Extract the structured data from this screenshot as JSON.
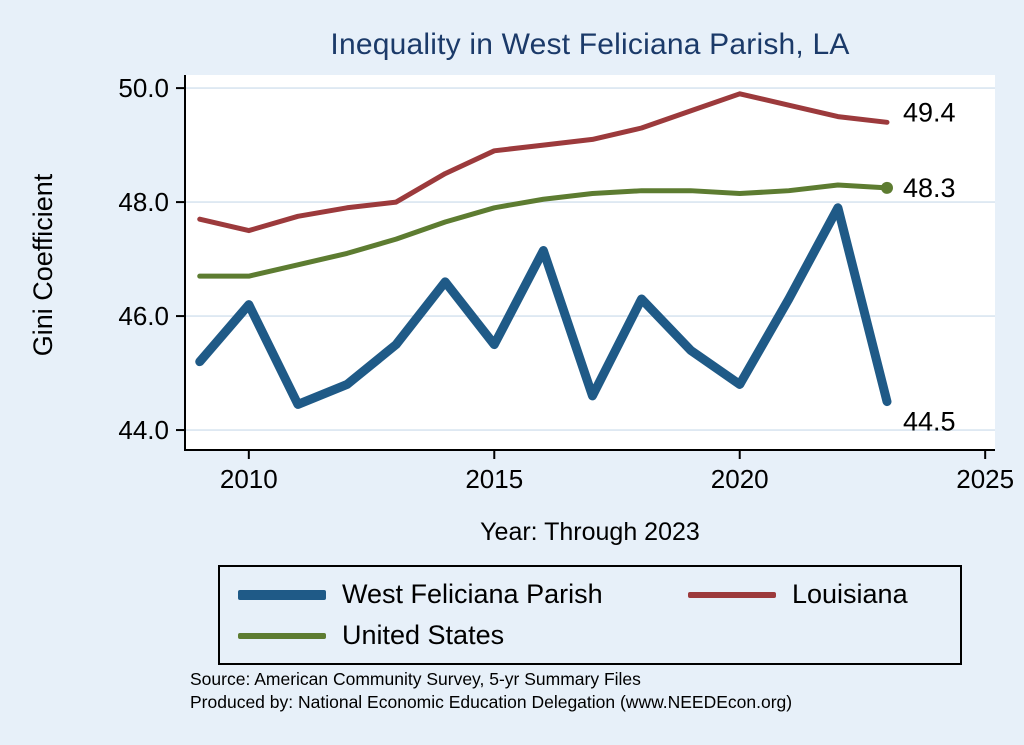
{
  "chart_data": {
    "type": "line",
    "title": "Inequality in West Feliciana Parish, LA",
    "xlabel": "Year: Through 2023",
    "ylabel": "Gini Coefficient",
    "x": [
      2009,
      2010,
      2011,
      2012,
      2013,
      2014,
      2015,
      2016,
      2017,
      2018,
      2019,
      2020,
      2021,
      2022,
      2023
    ],
    "series": [
      {
        "name": "West Feliciana Parish",
        "color": "#1f5a87",
        "width": 9,
        "end_label": "44.5",
        "label_dy": 20,
        "end_dot": false,
        "values": [
          45.2,
          46.2,
          44.45,
          44.8,
          45.5,
          46.6,
          45.5,
          47.15,
          44.6,
          46.3,
          45.4,
          44.8,
          46.3,
          47.9,
          44.5
        ]
      },
      {
        "name": "Louisiana",
        "color": "#9c3a3c",
        "width": 5,
        "end_label": "49.4",
        "label_dy": -10,
        "end_dot": false,
        "values": [
          47.7,
          47.5,
          47.75,
          47.9,
          48.0,
          48.5,
          48.9,
          49.0,
          49.1,
          49.3,
          49.6,
          49.9,
          49.7,
          49.5,
          49.4
        ]
      },
      {
        "name": "United States",
        "color": "#5d7c31",
        "width": 5,
        "end_label": "48.3",
        "label_dy": 0,
        "end_dot": true,
        "values": [
          46.7,
          46.7,
          46.9,
          47.1,
          47.35,
          47.65,
          47.9,
          48.05,
          48.15,
          48.2,
          48.2,
          48.15,
          48.2,
          48.3,
          48.25
        ]
      }
    ],
    "xlim": [
      2008.7,
      2025.2
    ],
    "ylim": [
      43.65,
      50.23
    ],
    "xticks": [
      2010,
      2015,
      2020,
      2025
    ],
    "yticks": [
      44.0,
      46.0,
      48.0,
      50.0
    ],
    "grid": true,
    "legend_position": "bottom"
  },
  "footer": {
    "source": "Source: American Community Survey, 5-yr Summary Files",
    "produced_by": "Produced by: National Economic Education Delegation (www.NEEDEcon.org)"
  },
  "colors": {
    "background": "#e7f0f9",
    "plot_background": "#ffffff",
    "grid": "#d9e5f1",
    "axis": "#000000",
    "title": "#1b3a69",
    "tick_label": "#000000"
  }
}
